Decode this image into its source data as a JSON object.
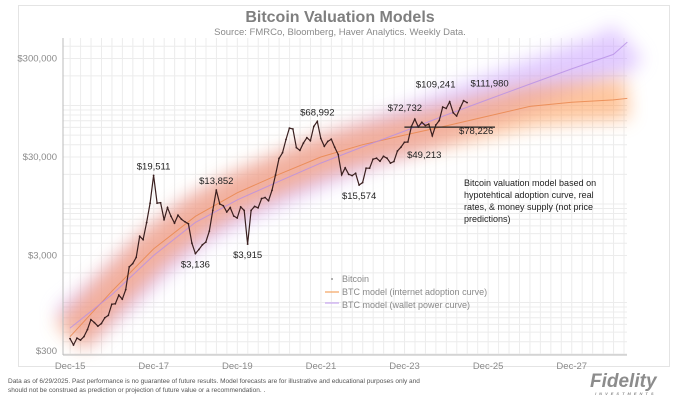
{
  "chart_data": {
    "type": "line",
    "title": "Bitcoin Valuation Models",
    "subtitle": "Source: FMRCo, Bloomberg, Haver Analytics. Weekly Data.",
    "y_scale": "log",
    "ylim": [
      300,
      500000
    ],
    "y_ticks": [
      {
        "v": 300,
        "label": "$300"
      },
      {
        "v": 3000,
        "label": "$3,000"
      },
      {
        "v": 30000,
        "label": "$30,000"
      },
      {
        "v": 300000,
        "label": "$300,000"
      }
    ],
    "x_ticks": [
      "Dec-15",
      "Dec-17",
      "Dec-19",
      "Dec-21",
      "Dec-23",
      "Dec-25",
      "Dec-27"
    ],
    "xlim": [
      "2015-11",
      "2029-04"
    ],
    "grid": true,
    "legend_position": "center-bottom",
    "series": [
      {
        "name": "Bitcoin",
        "color": "#3a1f1f",
        "start": "2015-12",
        "freq": "monthly",
        "values": [
          430,
          370,
          435,
          415,
          450,
          530,
          670,
          625,
          575,
          610,
          700,
          740,
          960,
          970,
          1190,
          1080,
          1350,
          2300,
          2480,
          2870,
          4700,
          4340,
          6470,
          10200,
          19511,
          10200,
          10300,
          6900,
          9200,
          7500,
          6400,
          7700,
          7000,
          6600,
          6300,
          4000,
          3136,
          3450,
          3850,
          4100,
          5300,
          8600,
          13852,
          10000,
          9600,
          8300,
          9200,
          7550,
          7200,
          9350,
          8600,
          3915,
          8600,
          9450,
          9140,
          11350,
          11650,
          10780,
          13800,
          19700,
          29000,
          33100,
          45200,
          58900,
          57700,
          37300,
          35000,
          41500,
          47100,
          43800,
          61300,
          68992,
          46300,
          38500,
          43200,
          45500,
          37700,
          31800,
          19800,
          23300,
          20000,
          19400,
          20500,
          15574,
          16500,
          23100,
          23100,
          28500,
          29200,
          27200,
          30500,
          29200,
          26000,
          27000,
          34500,
          37700,
          42300,
          42600,
          61200,
          72732,
          60600,
          67500,
          62700,
          64600,
          49213,
          63300,
          70200,
          96400,
          93400,
          109241,
          84400,
          78226,
          94200,
          111980,
          107000
        ]
      },
      {
        "name": "BTC model (internet adoption curve)",
        "color": "#f4a460",
        "x": [
          "2015-12",
          "2016-12",
          "2017-12",
          "2018-12",
          "2019-12",
          "2020-12",
          "2021-12",
          "2022-12",
          "2023-12",
          "2024-12",
          "2025-12",
          "2026-12",
          "2027-12",
          "2028-12",
          "2029-04"
        ],
        "values": [
          450,
          1300,
          3500,
          7500,
          13000,
          20000,
          30000,
          40000,
          50000,
          62000,
          78000,
          98000,
          108000,
          114000,
          118000
        ]
      },
      {
        "name": "BTC model (wallet power curve)",
        "color": "#c9a6f0",
        "x": [
          "2015-12",
          "2016-12",
          "2017-12",
          "2018-12",
          "2019-12",
          "2020-12",
          "2021-12",
          "2022-12",
          "2023-12",
          "2024-12",
          "2025-12",
          "2026-12",
          "2027-12",
          "2028-12",
          "2029-04"
        ],
        "values": [
          550,
          1200,
          3000,
          6500,
          11000,
          17000,
          26000,
          38000,
          55000,
          80000,
          115000,
          165000,
          235000,
          330000,
          440000
        ]
      }
    ],
    "annotations": [
      {
        "text": "$19,511",
        "date": "2017-12",
        "value": 19511
      },
      {
        "text": "$3,136",
        "date": "2018-12",
        "value": 3136
      },
      {
        "text": "$13,852",
        "date": "2019-06",
        "value": 13852
      },
      {
        "text": "$3,915",
        "date": "2020-03",
        "value": 3915
      },
      {
        "text": "$68,992",
        "date": "2021-11",
        "value": 68992
      },
      {
        "text": "$15,574",
        "date": "2022-11",
        "value": 15574
      },
      {
        "text": "$72,732",
        "date": "2024-03",
        "value": 72732
      },
      {
        "text": "$109,241",
        "date": "2025-01",
        "value": 109241
      },
      {
        "text": "$49,213",
        "date": "2024-08",
        "value": 49213
      },
      {
        "text": "$78,226",
        "date": "2025-04",
        "value": 78226
      },
      {
        "text": "$111,980",
        "date": "2025-05",
        "value": 111980
      }
    ],
    "reference_line": {
      "value": 72732,
      "from": "2023-12",
      "to": "2026-02"
    },
    "note": [
      "Bitcoin valuation model based on",
      "hypotehtical adoption curve, real",
      "rates, & money supply (not price",
      "predictions)"
    ]
  },
  "footer": {
    "disclaimer_1": "Data as of 6/29/2025. Past performance is no guarantee of future results. Model forecasts are for illustrative and educational purposes only and",
    "disclaimer_2": "should not be construed as prediction or projection of future value or a recommendation. .",
    "logo_text": "Fidelity",
    "logo_sub": "INVESTMENTS"
  }
}
